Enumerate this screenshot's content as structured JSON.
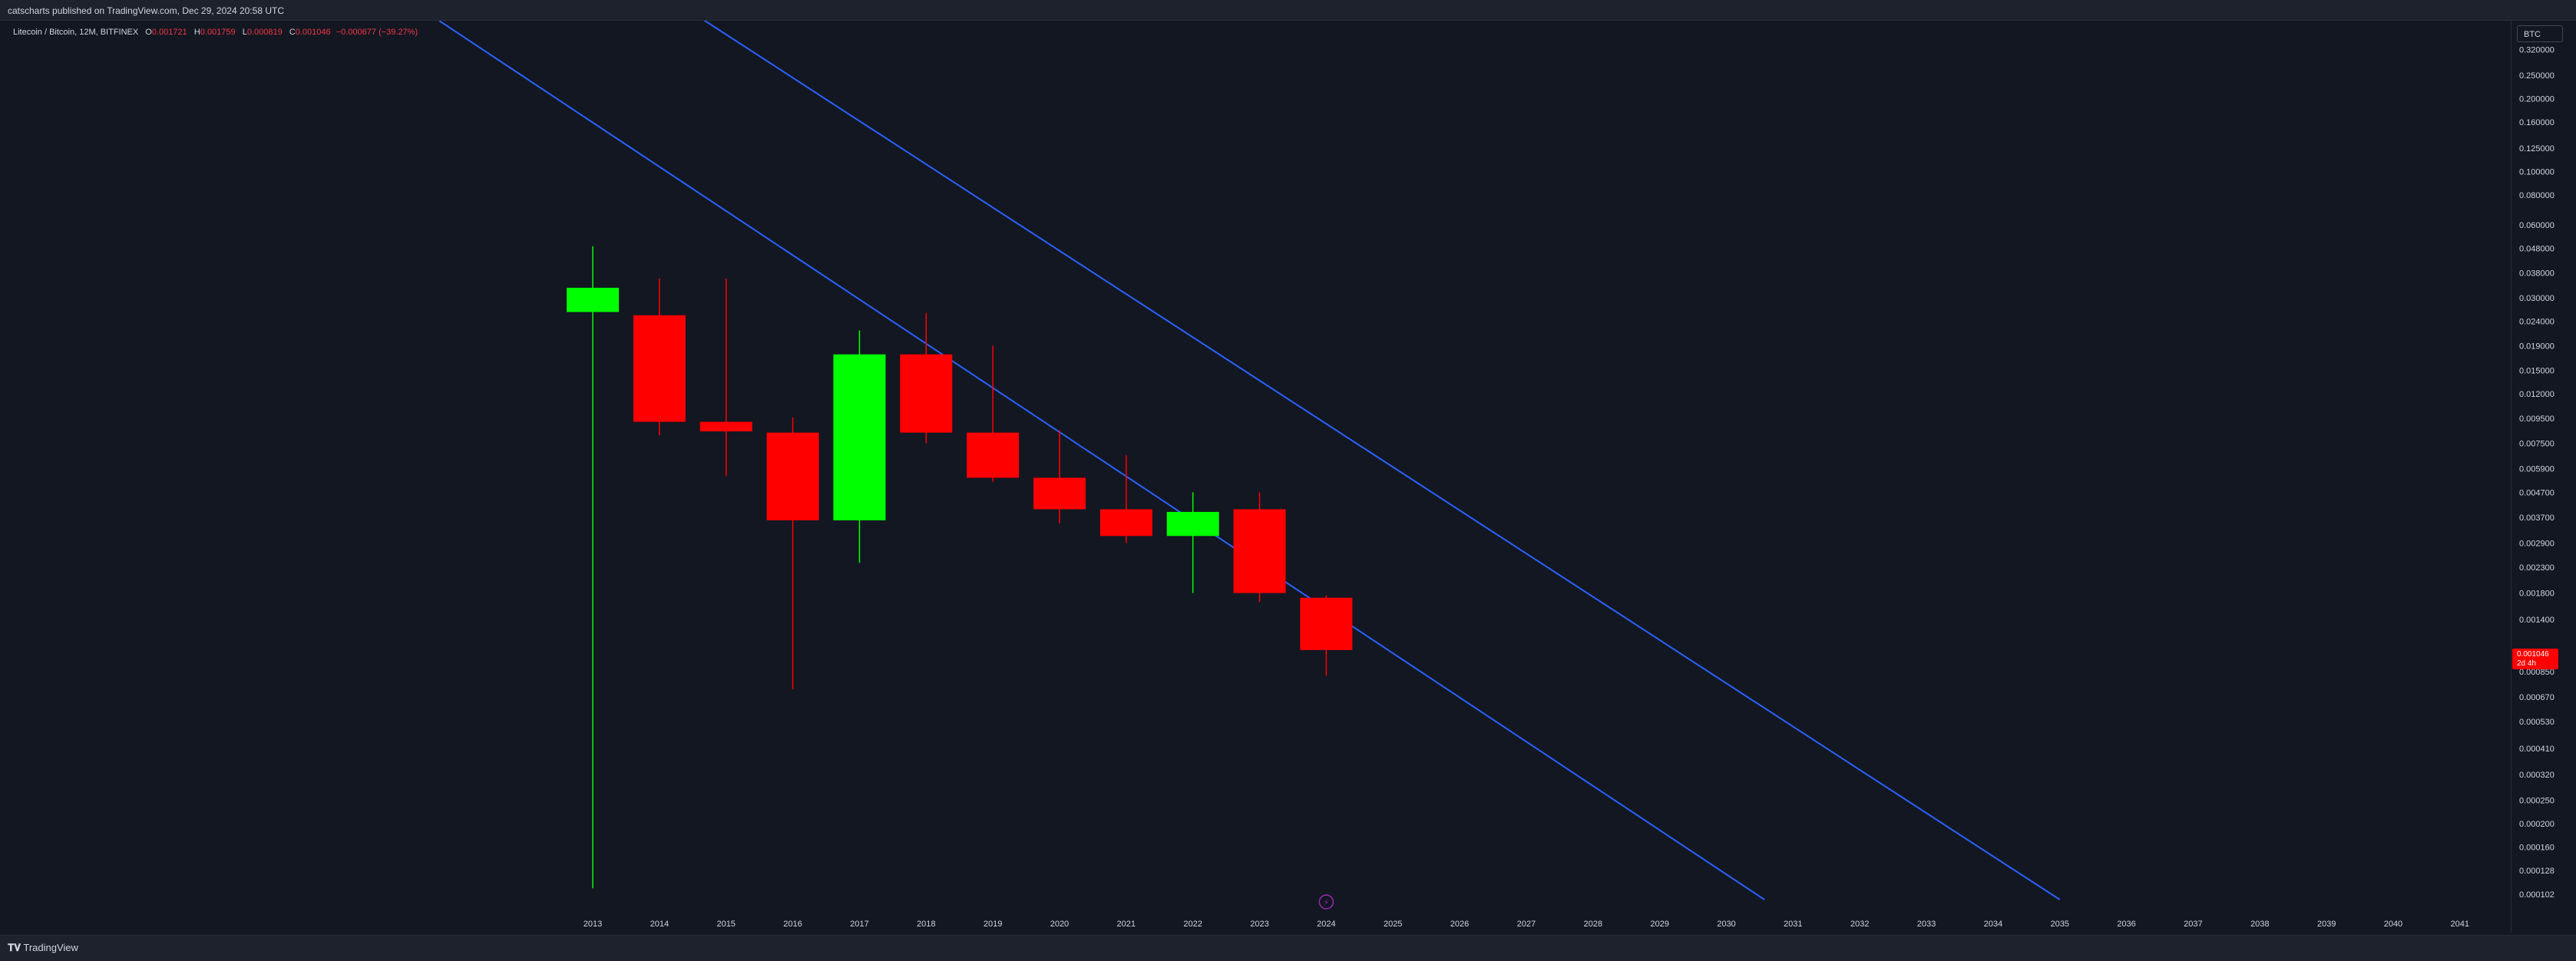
{
  "header": {
    "published_text": "catscharts published on TradingView.com, Dec 29, 2024 20:58 UTC"
  },
  "legend": {
    "symbol": "Litecoin / Bitcoin, 12M, BITFINEX",
    "open_label": "O",
    "open_value": "0.001721",
    "high_label": "H",
    "high_value": "0.001759",
    "low_label": "L",
    "low_value": "0.000819",
    "close_label": "C",
    "close_value": "0.001046",
    "change": "−0.000677 (−39.27%)"
  },
  "currency_button": "BTC",
  "last_price": {
    "value": "0.001046",
    "countdown": "2d 4h"
  },
  "footer": {
    "brand": "TradingView"
  },
  "colors": {
    "background": "#131722",
    "up": "#00ff00",
    "down": "#ff0000",
    "trendline": "#2962ff"
  },
  "chart_data": {
    "type": "candlestick",
    "scale": "log",
    "candles": [
      {
        "x": "2013",
        "open": 0.0262,
        "high": 0.049,
        "low": 0.000108,
        "close": 0.033
      },
      {
        "x": "2014",
        "open": 0.0254,
        "high": 0.036,
        "low": 0.0081,
        "close": 0.0092
      },
      {
        "x": "2015",
        "open": 0.0092,
        "high": 0.036,
        "low": 0.0055,
        "close": 0.0084
      },
      {
        "x": "2016",
        "open": 0.0083,
        "high": 0.0096,
        "low": 0.00072,
        "close": 0.0036
      },
      {
        "x": "2017",
        "open": 0.0036,
        "high": 0.022,
        "low": 0.0024,
        "close": 0.0175
      },
      {
        "x": "2018",
        "open": 0.0175,
        "high": 0.026,
        "low": 0.0075,
        "close": 0.0083
      },
      {
        "x": "2019",
        "open": 0.0083,
        "high": 0.019,
        "low": 0.0052,
        "close": 0.0054
      },
      {
        "x": "2020",
        "open": 0.0054,
        "high": 0.0085,
        "low": 0.0035,
        "close": 0.004
      },
      {
        "x": "2021",
        "open": 0.004,
        "high": 0.0067,
        "low": 0.0029,
        "close": 0.0031
      },
      {
        "x": "2022",
        "open": 0.0031,
        "high": 0.0047,
        "low": 0.0018,
        "close": 0.0039
      },
      {
        "x": "2023",
        "open": 0.004,
        "high": 0.0047,
        "low": 0.00165,
        "close": 0.0018
      },
      {
        "x": "2024",
        "open": 0.001721,
        "high": 0.001759,
        "low": 0.000819,
        "close": 0.001046
      }
    ],
    "trendlines": [
      {
        "x1": 2010.7,
        "y1": 0.42,
        "x2": 2030.57,
        "y2": 9.7e-05
      },
      {
        "x1": 2014.41,
        "y1": 0.47,
        "x2": 2035.0,
        "y2": 9.7e-05
      }
    ],
    "x_tick_labels": [
      "2013",
      "2014",
      "2015",
      "2016",
      "2017",
      "2018",
      "2019",
      "2020",
      "2021",
      "2022",
      "2023",
      "2024",
      "2025",
      "2026",
      "2027",
      "2028",
      "2029",
      "2030",
      "2031",
      "2032",
      "2033",
      "2034",
      "2035",
      "2036",
      "2037",
      "2038",
      "2039",
      "2040",
      "2041"
    ],
    "y_tick_labels": [
      "0.320000",
      "0.250000",
      "0.200000",
      "0.160000",
      "0.125000",
      "0.100000",
      "0.080000",
      "0.060000",
      "0.048000",
      "0.038000",
      "0.030000",
      "0.024000",
      "0.019000",
      "0.015000",
      "0.012000",
      "0.009500",
      "0.007500",
      "0.005900",
      "0.004700",
      "0.003700",
      "0.002900",
      "0.002300",
      "0.001800",
      "0.001400",
      "0.000850",
      "0.000670",
      "0.000530",
      "0.000410",
      "0.000320",
      "0.000250",
      "0.000200",
      "0.000160",
      "0.000128",
      "0.000102"
    ],
    "ylim": [
      9.7e-05,
      0.34
    ]
  }
}
